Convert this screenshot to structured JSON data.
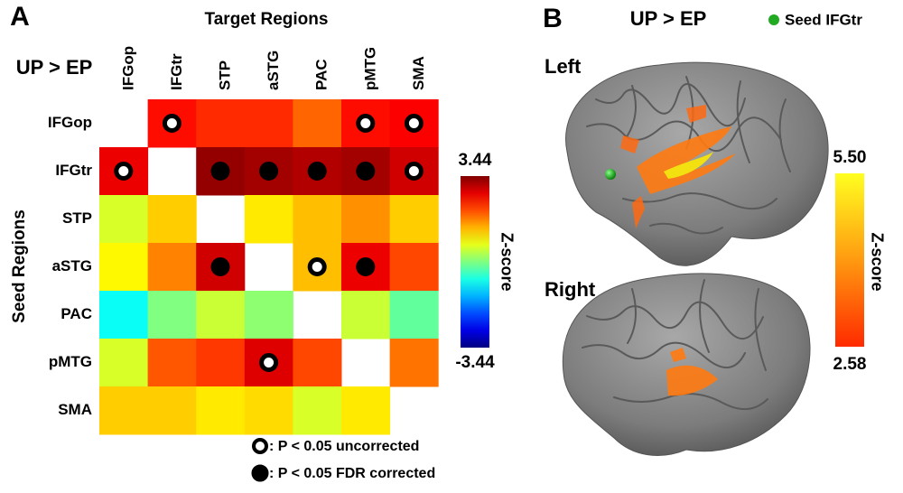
{
  "panel_labels": [
    "A",
    "B"
  ],
  "chart_data": [
    {
      "type": "heatmap",
      "title": "UP > EP",
      "x_label": "Target Regions",
      "y_label": "Seed Regions",
      "categories": [
        "IFGop",
        "IFGtr",
        "STP",
        "aSTG",
        "PAC",
        "pMTG",
        "SMA"
      ],
      "rows": [
        "IFGop",
        "IFGtr",
        "STP",
        "aSTG",
        "PAC",
        "pMTG",
        "SMA"
      ],
      "values": [
        [
          null,
          2.5,
          2.3,
          2.3,
          1.9,
          2.5,
          2.6
        ],
        [
          2.7,
          null,
          3.3,
          3.2,
          3.1,
          3.2,
          2.9
        ],
        [
          0.6,
          1.2,
          null,
          1.0,
          1.3,
          1.6,
          1.2
        ],
        [
          0.9,
          1.7,
          2.9,
          null,
          1.3,
          2.7,
          2.1
        ],
        [
          -0.8,
          0.0,
          0.5,
          0.1,
          null,
          0.5,
          -0.2
        ],
        [
          0.6,
          2.0,
          2.2,
          2.8,
          2.1,
          null,
          1.8
        ],
        [
          1.2,
          1.2,
          1.0,
          1.1,
          0.6,
          1.0,
          null
        ]
      ],
      "markers": [
        [
          null,
          0,
          null,
          null,
          null,
          0,
          0
        ],
        [
          0,
          null,
          1,
          1,
          1,
          1,
          0
        ],
        [
          null,
          null,
          null,
          null,
          null,
          null,
          null
        ],
        [
          null,
          null,
          1,
          null,
          0,
          1,
          null
        ],
        [
          null,
          null,
          null,
          null,
          null,
          null,
          null
        ],
        [
          null,
          null,
          null,
          0,
          null,
          null,
          null
        ],
        [
          null,
          null,
          null,
          null,
          null,
          null,
          null
        ]
      ],
      "legend": [
        {
          "name": ": P < 0.05 uncorrected",
          "fill": "#ffffff"
        },
        {
          "name": ": P < 0.05 FDR corrected",
          "fill": "#000000"
        }
      ],
      "colorbar_label": "Z-score",
      "colormap": "jet",
      "clim": [
        -3.44,
        3.44
      ],
      "cticks": [
        -3.44,
        3.44
      ]
    },
    {
      "type": "surface",
      "title": "UP > EP",
      "seed_label": "Seed IFGtr",
      "seed_color": "#22aa22",
      "views": [
        "Left",
        "Right"
      ],
      "colorbar_label": "Z-score",
      "colormap": "hot",
      "clim": [
        2.58,
        5.5
      ],
      "cticks": [
        2.58,
        {
          "value": 5.5,
          "label": "5.50"
        }
      ]
    }
  ]
}
